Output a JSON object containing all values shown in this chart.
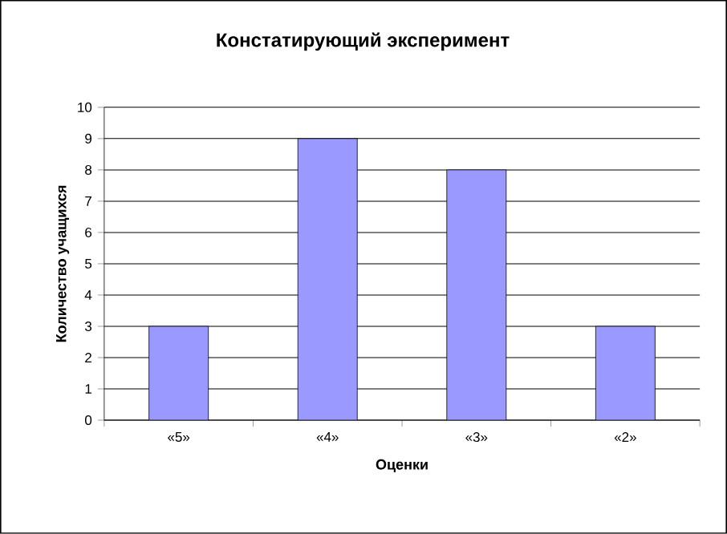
{
  "chart_data": {
    "type": "bar",
    "title": "Констатирующий эксперимент",
    "xlabel": "Оценки",
    "ylabel": "Количество учащихся",
    "categories": [
      "«5»",
      "«4»",
      "«3»",
      "«2»"
    ],
    "values": [
      3,
      9,
      8,
      3
    ],
    "color": "#9999ff",
    "ylim": [
      0,
      10
    ],
    "yticks": [
      0,
      1,
      2,
      3,
      4,
      5,
      6,
      7,
      8,
      9,
      10
    ],
    "grid": "y"
  }
}
